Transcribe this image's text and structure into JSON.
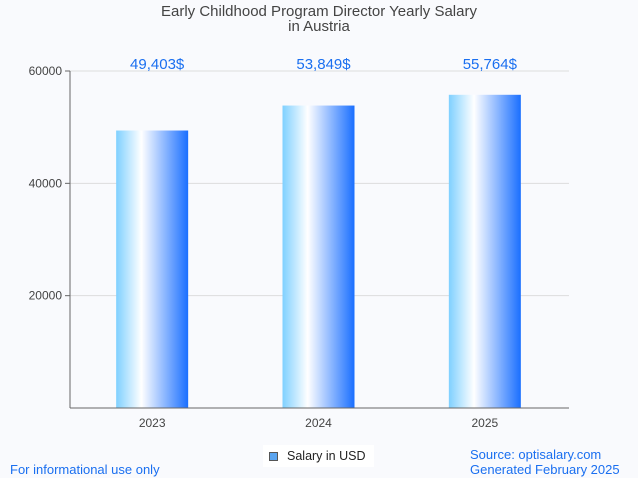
{
  "chart_data": {
    "type": "bar",
    "title_line1": "Early Childhood Program Director Yearly Salary",
    "title_line2": "in Austria",
    "categories": [
      "2023",
      "2024",
      "2025"
    ],
    "values": [
      49403,
      53849,
      55764
    ],
    "data_labels": [
      "49,403$",
      "53,849$",
      "55,764$"
    ],
    "yticks": [
      20000,
      40000,
      60000
    ],
    "ylim": [
      0,
      60000
    ],
    "legend": "Salary in USD",
    "legend_placement": "bottom-center",
    "grid": true
  },
  "footer": {
    "left": "For informational use only",
    "source": "Source: optisalary.com",
    "generated": "Generated February 2025"
  },
  "colors": {
    "label": "#1a6ff0",
    "bar_left": "#7fd0ff",
    "bar_mid": "#ffffff",
    "bar_right": "#1a6fff"
  }
}
